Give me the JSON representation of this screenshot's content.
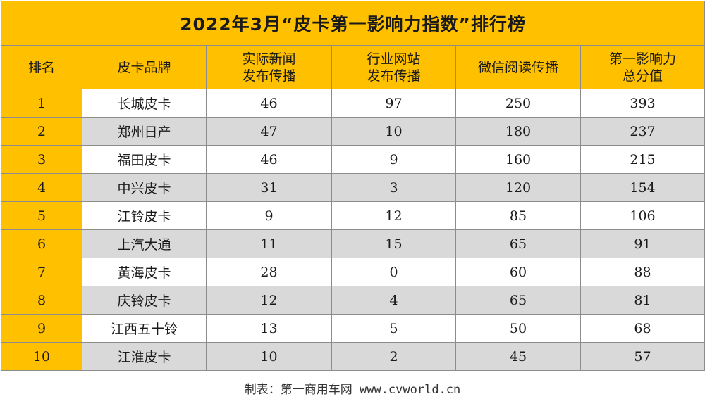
{
  "title": "2022年3月“皮卡第一影响力指数”排行榜",
  "headers": [
    {
      "line1": "排名",
      "line2": ""
    },
    {
      "line1": "皮卡品牌",
      "line2": ""
    },
    {
      "line1": "实际新闻",
      "line2": "发布传播"
    },
    {
      "line1": "行业网站",
      "line2": "发布传播"
    },
    {
      "line1": "微信阅读传播",
      "line2": ""
    },
    {
      "line1": "第一影响力",
      "line2": "总分值"
    }
  ],
  "rows": [
    {
      "rank": "1",
      "brand": "长城皮卡",
      "news": "46",
      "site": "97",
      "wechat": "250",
      "total": "393"
    },
    {
      "rank": "2",
      "brand": "郑州日产",
      "news": "47",
      "site": "10",
      "wechat": "180",
      "total": "237"
    },
    {
      "rank": "3",
      "brand": "福田皮卡",
      "news": "46",
      "site": "9",
      "wechat": "160",
      "total": "215"
    },
    {
      "rank": "4",
      "brand": "中兴皮卡",
      "news": "31",
      "site": "3",
      "wechat": "120",
      "total": "154"
    },
    {
      "rank": "5",
      "brand": "江铃皮卡",
      "news": "9",
      "site": "12",
      "wechat": "85",
      "total": "106"
    },
    {
      "rank": "6",
      "brand": "上汽大通",
      "news": "11",
      "site": "15",
      "wechat": "65",
      "total": "91"
    },
    {
      "rank": "7",
      "brand": "黄海皮卡",
      "news": "28",
      "site": "0",
      "wechat": "60",
      "total": "88"
    },
    {
      "rank": "8",
      "brand": "庆铃皮卡",
      "news": "12",
      "site": "4",
      "wechat": "65",
      "total": "81"
    },
    {
      "rank": "9",
      "brand": "江西五十铃",
      "news": "13",
      "site": "5",
      "wechat": "50",
      "total": "68"
    },
    {
      "rank": "10",
      "brand": "江淮皮卡",
      "news": "10",
      "site": "2",
      "wechat": "45",
      "total": "57"
    }
  ],
  "footer": "制表：第一商用车网 www.cvworld.cn",
  "colors": {
    "header_bg": "#ffc000",
    "row_alt_bg": "#d9d9d9",
    "row_bg": "#ffffff",
    "border": "#8c8c8c"
  }
}
